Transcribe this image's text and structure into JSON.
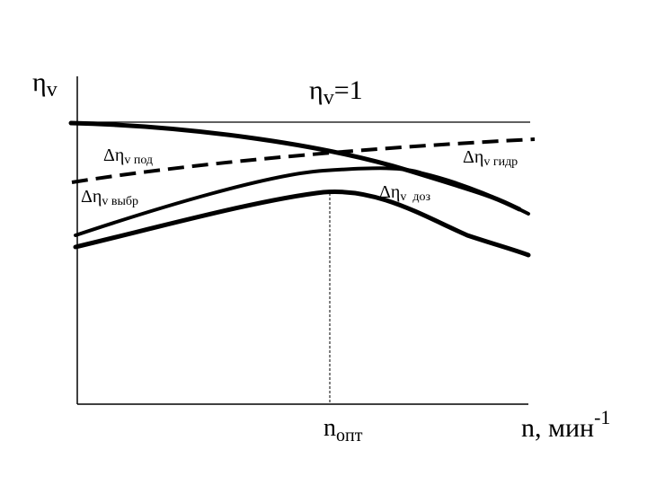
{
  "colors": {
    "background": "#ffffff",
    "ink": "#000000"
  },
  "diagram": {
    "y_axis": {
      "symbol": "η",
      "subscript": "v"
    },
    "reference_line": {
      "symbol": "η",
      "subscript": "v",
      "value": "=1"
    },
    "x_axis": {
      "label": "n, мин",
      "superscript": "-1"
    },
    "optimum": {
      "symbol": "n",
      "subscript": "опт"
    },
    "curves": {
      "pod": {
        "symbol": "Δη",
        "subscript": "v под"
      },
      "gidr": {
        "symbol": "Δη",
        "subscript": "v гидр"
      },
      "vybr": {
        "symbol": "Δη",
        "subscript": "v выбр"
      },
      "doz": {
        "symbol": "Δη",
        "subscript": "v  доз"
      }
    }
  }
}
